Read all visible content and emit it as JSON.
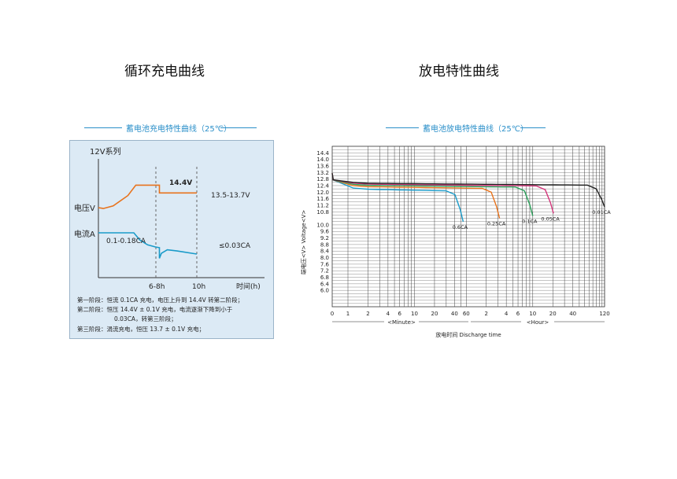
{
  "headings": {
    "left": "循环充电曲线",
    "right": "放电特性曲线"
  },
  "colors": {
    "accent": "#2a8fc9",
    "voltage": "#e8731c",
    "current": "#1a9bc9",
    "panel": "#dceaf5"
  },
  "chart_data": [
    {
      "type": "line",
      "title": "蓄电池充电特性曲线（25℃）",
      "corner_label": "12V系列",
      "y_labels": [
        "电压V",
        "电流A"
      ],
      "x_ticks": [
        "6-8h",
        "10h"
      ],
      "x_axis_label": "时间(h)",
      "voltage_annotations": [
        "14.4V",
        "13.5-13.7V"
      ],
      "current_annotations": [
        "0.1-0.18CA",
        "≤0.03CA"
      ],
      "stage_notes": [
        "第一阶段：恒流 0.1CA 充电，电压上升到 14.4V 转第二阶段；",
        "第二阶段：恒压 14.4V ± 0.1V 充电，电流逐渐下降到小于",
        "0.03CA，转第三阶段；",
        "第三阶段：涓流充电，恒压 13.7 ± 0.1V 充电；"
      ],
      "series": [
        {
          "name": "电压V",
          "color": "#e8731c",
          "points": [
            [
              0,
              11.4
            ],
            [
              0.5,
              11.35
            ],
            [
              1.5,
              11.5
            ],
            [
              3.0,
              12.1
            ],
            [
              3.8,
              12.7
            ],
            [
              3.8,
              12.7
            ],
            [
              6.2,
              12.7
            ],
            [
              6.2,
              12.25
            ],
            [
              10.0,
              12.25
            ]
          ]
        },
        {
          "name": "电流A",
          "color": "#1a9bc9",
          "points": [
            [
              0,
              0.0
            ],
            [
              3.6,
              0.0
            ],
            [
              4.2,
              -0.5
            ],
            [
              5.0,
              -0.85
            ],
            [
              5.8,
              -1.0
            ],
            [
              6.2,
              -1.05
            ],
            [
              6.2,
              -1.8
            ],
            [
              6.4,
              -1.45
            ],
            [
              7.0,
              -1.2
            ],
            [
              8.0,
              -1.28
            ],
            [
              10.0,
              -1.5
            ]
          ]
        }
      ]
    },
    {
      "type": "line",
      "title": "蓄电池放电特性曲线（25℃）",
      "ylabel": "端电压<V> Voltage<V>",
      "xlabel": "放电时间 Discharge time",
      "x_scale": "log",
      "x_ticks_minute": [
        "0",
        "1",
        "2",
        "4",
        "6",
        "10",
        "20",
        "40",
        "60"
      ],
      "x_ticks_hour": [
        "2",
        "4",
        "6",
        "10",
        "20",
        "40",
        "120"
      ],
      "x_groups": [
        "<Minute>",
        "<Hour>"
      ],
      "y_ticks": [
        "14.4",
        "14.0",
        "13.6",
        "13.2",
        "12.8",
        "12.4",
        "12.0",
        "11.6",
        "11.2",
        "10.8",
        "10.0",
        "9.6",
        "9.2",
        "8.8",
        "8.4",
        "8.0",
        "7.6",
        "7.2",
        "6.8",
        "6.4",
        "6.0"
      ],
      "ylim": [
        5.0,
        14.8
      ],
      "series": [
        {
          "name": "0.6CA",
          "color": "#1a9bc9",
          "end_minutes": 54,
          "end_voltage": 10.2
        },
        {
          "name": "0.25CA",
          "color": "#e8731c",
          "end_minutes": 190,
          "end_voltage": 10.4
        },
        {
          "name": "0.1CA",
          "color": "#2aa05a",
          "end_minutes": 600,
          "end_voltage": 10.55
        },
        {
          "name": "0.05CA",
          "color": "#d4357a",
          "end_minutes": 1230,
          "end_voltage": 10.7
        },
        {
          "name": "0.01CA",
          "color": "#222222",
          "end_minutes": 7200,
          "end_voltage": 11.1
        }
      ]
    }
  ]
}
